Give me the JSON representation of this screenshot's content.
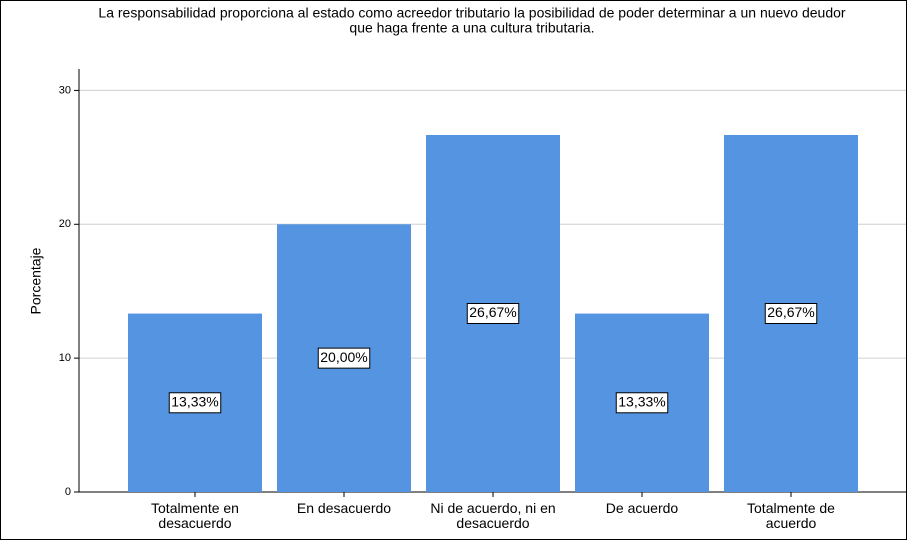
{
  "chart_data": {
    "type": "bar",
    "title": [
      "La responsabilidad proporciona al estado como acreedor tributario la posibilidad de poder determinar a un nuevo deudor",
      "que haga frente a una cultura tributaria."
    ],
    "y_label": "Porcentaje",
    "categories": [
      "Totalmente en desacuerdo",
      "En desacuerdo",
      "Ni de acuerdo, ni en desacuerdo",
      "De acuerdo",
      "Totalmente de acuerdo"
    ],
    "values": [
      13.33,
      20.0,
      26.67,
      13.33,
      26.67
    ],
    "value_labels": [
      "13,33%",
      "20,00%",
      "26,67%",
      "13,33%",
      "26,67%"
    ],
    "color": "#5594e0",
    "ylim": [
      0,
      31.6
    ],
    "yticks": [
      0,
      10,
      20,
      30
    ],
    "grid": true
  }
}
